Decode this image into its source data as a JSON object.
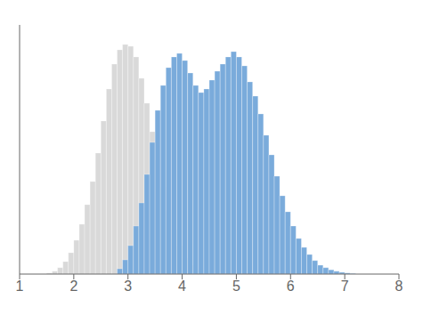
{
  "chart_data": {
    "type": "histogram",
    "xlim": [
      1,
      8
    ],
    "xticks": [
      1,
      2,
      3,
      4,
      5,
      6,
      7,
      8
    ],
    "ylim": [
      0,
      70
    ],
    "grid": false,
    "tick_labels": "x",
    "series": [
      {
        "color": "#d9d9d9",
        "bins": [
          1.5,
          1.6,
          1.7,
          1.8,
          1.9,
          2,
          2.1,
          2.2,
          2.3,
          2.4,
          2.5,
          2.6,
          2.7,
          2.8,
          2.9,
          3,
          3.1,
          3.2,
          3.3,
          3.4,
          3.5,
          3.6,
          3.7,
          3.8,
          3.9,
          4,
          4.1,
          4.2,
          4.3,
          4.4,
          4.5,
          4.6
        ],
        "values": [
          0.3,
          0.8,
          1.8,
          3.5,
          6.0,
          9.5,
          14.0,
          19.5,
          26.0,
          34.0,
          43.0,
          52.0,
          59.0,
          63.0,
          64.5,
          64.0,
          61.0,
          55.0,
          48.0,
          40.0,
          32.0,
          24.5,
          18.0,
          12.5,
          8.0,
          4.5,
          2.5,
          1.2,
          0.6,
          0.2,
          0.1
        ]
      },
      {
        "color": "#7aabdb",
        "bins": [
          2.8,
          2.9,
          3,
          3.1,
          3.2,
          3.3,
          3.4,
          3.5,
          3.6,
          3.7,
          3.8,
          3.9,
          4,
          4.1,
          4.2,
          4.3,
          4.4,
          4.5,
          4.6,
          4.7,
          4.8,
          4.9,
          5,
          5.1,
          5.2,
          5.3,
          5.4,
          5.5,
          5.6,
          5.7,
          5.8,
          5.9,
          6,
          6.1,
          6.2,
          6.3,
          6.4,
          6.5,
          6.6,
          6.7,
          6.8,
          6.9,
          7,
          7.1,
          7.2
        ],
        "values": [
          1.5,
          4.0,
          8.0,
          13.5,
          20.0,
          28.0,
          37.0,
          46.0,
          53.0,
          58.0,
          61.0,
          62.0,
          60.0,
          56.5,
          53.0,
          51.0,
          52.0,
          54.5,
          57.0,
          59.0,
          61.0,
          62.5,
          61.0,
          58.5,
          54.0,
          50.0,
          45.0,
          39.0,
          33.5,
          27.5,
          22.0,
          17.5,
          13.5,
          10.0,
          7.5,
          5.5,
          3.8,
          2.5,
          1.8,
          1.2,
          0.8,
          0.5,
          0.3,
          0.15
        ]
      }
    ]
  }
}
